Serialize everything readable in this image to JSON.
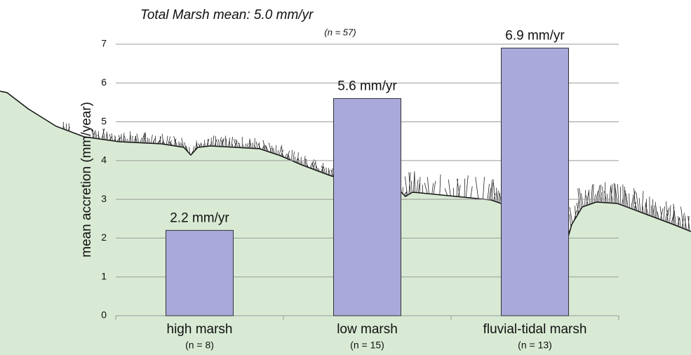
{
  "chart_data": {
    "type": "bar",
    "title": "Total Marsh mean:  5.0 mm/yr",
    "subtitle": "(n = 57)",
    "y_label": "mean accretion (mm/year)",
    "categories": [
      "high marsh",
      "low marsh",
      "fluvial-tidal marsh"
    ],
    "category_notes": [
      "(n = 8)",
      "(n = 15)",
      "(n = 13)"
    ],
    "values": [
      2.2,
      5.6,
      6.9
    ],
    "value_labels": [
      "2.2 mm/yr",
      "5.6 mm/yr",
      "6.9 mm/yr"
    ],
    "color": "#a9a9dc",
    "ylim": [
      0,
      7
    ],
    "yticks": [
      0,
      1,
      2,
      3,
      4,
      5,
      6,
      7
    ],
    "grid": true
  }
}
